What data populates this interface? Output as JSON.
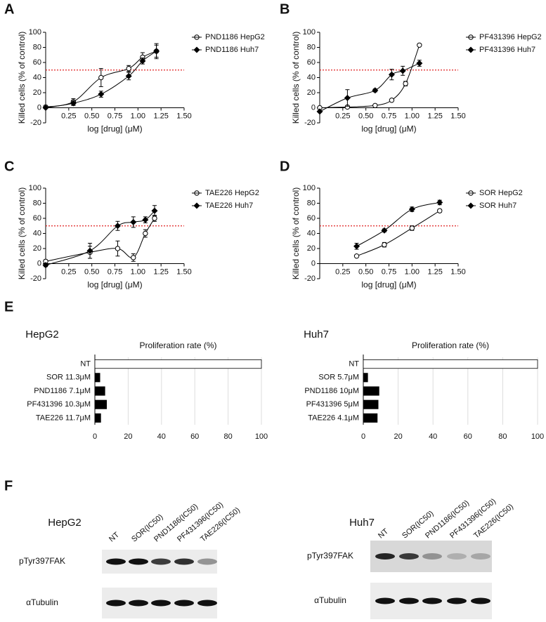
{
  "chart_data": [
    {
      "type": "scatter",
      "panel": "A",
      "x_label": "log [drug] (μM)",
      "y_label": "Killed cells (% of control)",
      "xlim": [
        0,
        1.5
      ],
      "ylim": [
        -20,
        100
      ],
      "xticks": [
        0.25,
        {
          "value": 0.5,
          "label": "0.50"
        },
        0.75,
        {
          "value": 1.0,
          "label": "1.00"
        },
        1.25,
        {
          "value": 1.5,
          "label": "1.50"
        }
      ],
      "yticks": [
        -20,
        0,
        20,
        40,
        60,
        80,
        100
      ],
      "threshold": 50,
      "threshold_color": "#e02020",
      "legend": "upper right",
      "series": [
        {
          "name": "PND1186 HepG2",
          "marker": "circle-open",
          "color": "#000000",
          "x": [
            0,
            0.3,
            0.6,
            0.9,
            1.05,
            1.2
          ],
          "values": [
            1,
            8,
            40,
            52,
            67,
            75
          ],
          "errors": [
            2,
            4,
            12,
            4,
            6,
            8
          ]
        },
        {
          "name": "PND1186 Huh7",
          "marker": "diamond",
          "color": "#000000",
          "x": [
            0,
            0.3,
            0.6,
            0.9,
            1.05,
            1.2
          ],
          "values": [
            0,
            6,
            18,
            42,
            62,
            75
          ],
          "errors": [
            1,
            3,
            4,
            5,
            4,
            10
          ]
        }
      ]
    },
    {
      "type": "scatter",
      "panel": "B",
      "x_label": "log [drug] (μM)",
      "y_label": "Killed cells (% of control)",
      "xlim": [
        0,
        1.5
      ],
      "ylim": [
        -20,
        100
      ],
      "xticks": [
        0.25,
        {
          "value": 0.5,
          "label": "0.50"
        },
        0.75,
        {
          "value": 1.0,
          "label": "1.00"
        },
        1.25,
        {
          "value": 1.5,
          "label": "1.50"
        }
      ],
      "yticks": [
        -20,
        0,
        20,
        40,
        60,
        80,
        100
      ],
      "threshold": 50,
      "threshold_color": "#e02020",
      "legend": "upper right",
      "series": [
        {
          "name": "PF431396 HepG2",
          "marker": "circle-open",
          "color": "#000000",
          "x": [
            0,
            0.3,
            0.6,
            0.78,
            0.93,
            1.08
          ],
          "values": [
            0,
            1,
            3,
            10,
            32,
            83
          ],
          "errors": [
            1,
            1,
            1,
            1,
            3,
            1
          ]
        },
        {
          "name": "PF431396 Huh7",
          "marker": "diamond",
          "color": "#000000",
          "x": [
            0,
            0.3,
            0.6,
            0.78,
            0.9,
            1.08
          ],
          "values": [
            -5,
            13,
            23,
            44,
            49,
            59
          ],
          "errors": [
            1,
            11,
            2,
            7,
            6,
            4
          ]
        }
      ]
    },
    {
      "type": "scatter",
      "panel": "C",
      "x_label": "log [drug] (μM)",
      "y_label": "Killed cells (% of control)",
      "xlim": [
        0,
        1.5
      ],
      "ylim": [
        -20,
        100
      ],
      "xticks": [
        0.25,
        {
          "value": 0.5,
          "label": "0.50"
        },
        0.75,
        {
          "value": 1.0,
          "label": "1.00"
        },
        1.25,
        {
          "value": 1.5,
          "label": "1.50"
        }
      ],
      "yticks": [
        -20,
        0,
        20,
        40,
        60,
        80,
        100
      ],
      "threshold": 50,
      "threshold_color": "#e02020",
      "legend": "upper right",
      "series": [
        {
          "name": "TAE226 HepG2",
          "marker": "circle-open",
          "color": "#000000",
          "x": [
            0,
            0.48,
            0.78,
            0.95,
            1.08,
            1.18
          ],
          "values": [
            3,
            15,
            20,
            8,
            40,
            60
          ],
          "errors": [
            2,
            8,
            10,
            5,
            5,
            4
          ]
        },
        {
          "name": "TAE226 Huh7",
          "marker": "diamond",
          "color": "#000000",
          "x": [
            0,
            0.48,
            0.78,
            0.95,
            1.08,
            1.18
          ],
          "values": [
            -2,
            17,
            50,
            55,
            58,
            70
          ],
          "errors": [
            2,
            10,
            6,
            7,
            4,
            7
          ]
        }
      ]
    },
    {
      "type": "scatter",
      "panel": "D",
      "x_label": "log [drug] (μM)",
      "y_label": "Killed cells (% of control)",
      "xlim": [
        0,
        1.5
      ],
      "ylim": [
        -20,
        100
      ],
      "xticks": [
        0.25,
        {
          "value": 0.5,
          "label": "0.50"
        },
        0.75,
        {
          "value": 1.0,
          "label": "1.00"
        },
        1.25,
        {
          "value": 1.5,
          "label": "1.50"
        }
      ],
      "yticks": [
        -20,
        0,
        20,
        40,
        60,
        80,
        100
      ],
      "threshold": 50,
      "threshold_color": "#e02020",
      "legend": "upper right",
      "series": [
        {
          "name": "SOR HepG2",
          "marker": "circle-open",
          "color": "#000000",
          "x": [
            0.4,
            0.7,
            1.0,
            1.3
          ],
          "values": [
            10,
            25,
            47,
            70
          ],
          "errors": [
            1,
            3,
            3,
            2
          ]
        },
        {
          "name": "SOR Huh7",
          "marker": "diamond",
          "color": "#000000",
          "x": [
            0.4,
            0.7,
            1.0,
            1.3
          ],
          "values": [
            23,
            44,
            72,
            81
          ],
          "errors": [
            4,
            2,
            3,
            3
          ]
        }
      ]
    },
    {
      "type": "hbar",
      "panel": "E",
      "title": "HepG2",
      "x_label": "Proliferation rate (%)",
      "categories": [
        "NT",
        "SOR 11.3μM",
        "PND1186 7.1μM",
        "PF431396 10.3μM",
        "TAE226 11.7μM"
      ],
      "values": [
        100,
        3,
        6,
        7,
        3.5
      ],
      "colors": [
        "#ffffff",
        "#000000",
        "#000000",
        "#000000",
        "#000000"
      ],
      "xlim": [
        0,
        100
      ],
      "xticks": [
        0,
        20,
        40,
        60,
        80,
        100
      ],
      "grid": true
    },
    {
      "type": "hbar",
      "title": "Huh7",
      "x_label": "Proliferation rate (%)",
      "categories": [
        "NT",
        "SOR 5.7μM",
        "PND1186 10μM",
        "PF431396 5μM",
        "TAE226 4.1μM"
      ],
      "values": [
        100,
        2.5,
        9,
        8.5,
        8
      ],
      "colors": [
        "#ffffff",
        "#000000",
        "#000000",
        "#000000",
        "#000000"
      ],
      "xlim": [
        0,
        100
      ],
      "xticks": [
        0,
        20,
        40,
        60,
        80,
        100
      ],
      "grid": true
    }
  ],
  "blot_panel": "F",
  "blots": [
    {
      "cell_line": "HepG2",
      "lanes": [
        "NT",
        "SOR(IC50)",
        "PND1186(IC50)",
        "PF431396(IC50)",
        "TAE226(IC50)"
      ],
      "rows": [
        "pTyr397FAK",
        "αTubulin"
      ]
    },
    {
      "cell_line": "Huh7",
      "lanes": [
        "NT",
        "SOR(IC50)",
        "PND1186(IC50)",
        "PF431396(IC50)",
        "TAE226(IC50)"
      ],
      "rows": [
        "pTyr397FAK",
        "αTubulin"
      ]
    }
  ]
}
